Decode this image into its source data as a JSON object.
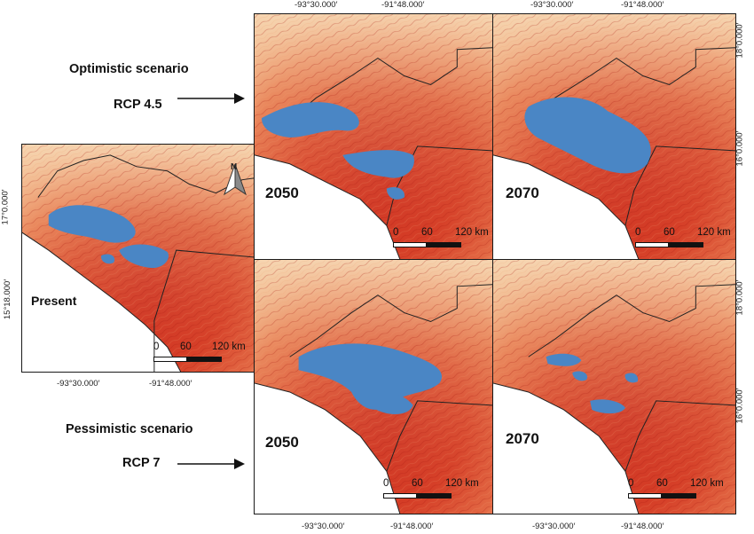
{
  "colors": {
    "land_light": "#f3c79c",
    "land_mid": "#e36a45",
    "land_dark": "#c9261b",
    "habitat": "#4a86c5",
    "sea": "#ffffff",
    "border": "#1a1a1a"
  },
  "labels": {
    "optimistic": "Optimistic scenario",
    "rcp45": "RCP 4.5",
    "pessimistic": "Pessimistic scenario",
    "rcp7": "RCP 7"
  },
  "panels": {
    "present": {
      "title": "Present"
    },
    "opt2050": {
      "title": "2050"
    },
    "opt2070": {
      "title": "2070"
    },
    "pes2050": {
      "title": "2050"
    },
    "pes2070": {
      "title": "2070"
    }
  },
  "scale": {
    "zero": "0",
    "mid": "60",
    "end": "120 km"
  },
  "coords": {
    "lon_w": "-93°30.000′",
    "lon_e": "-91°48.000′",
    "lat_17": "17°0.000′",
    "lat_15": "15°18.000′",
    "lat_18": "18°0.000′",
    "lat_16": "16°0.000′"
  },
  "north": {
    "letter": "N",
    "icon": "north-arrow-icon"
  }
}
